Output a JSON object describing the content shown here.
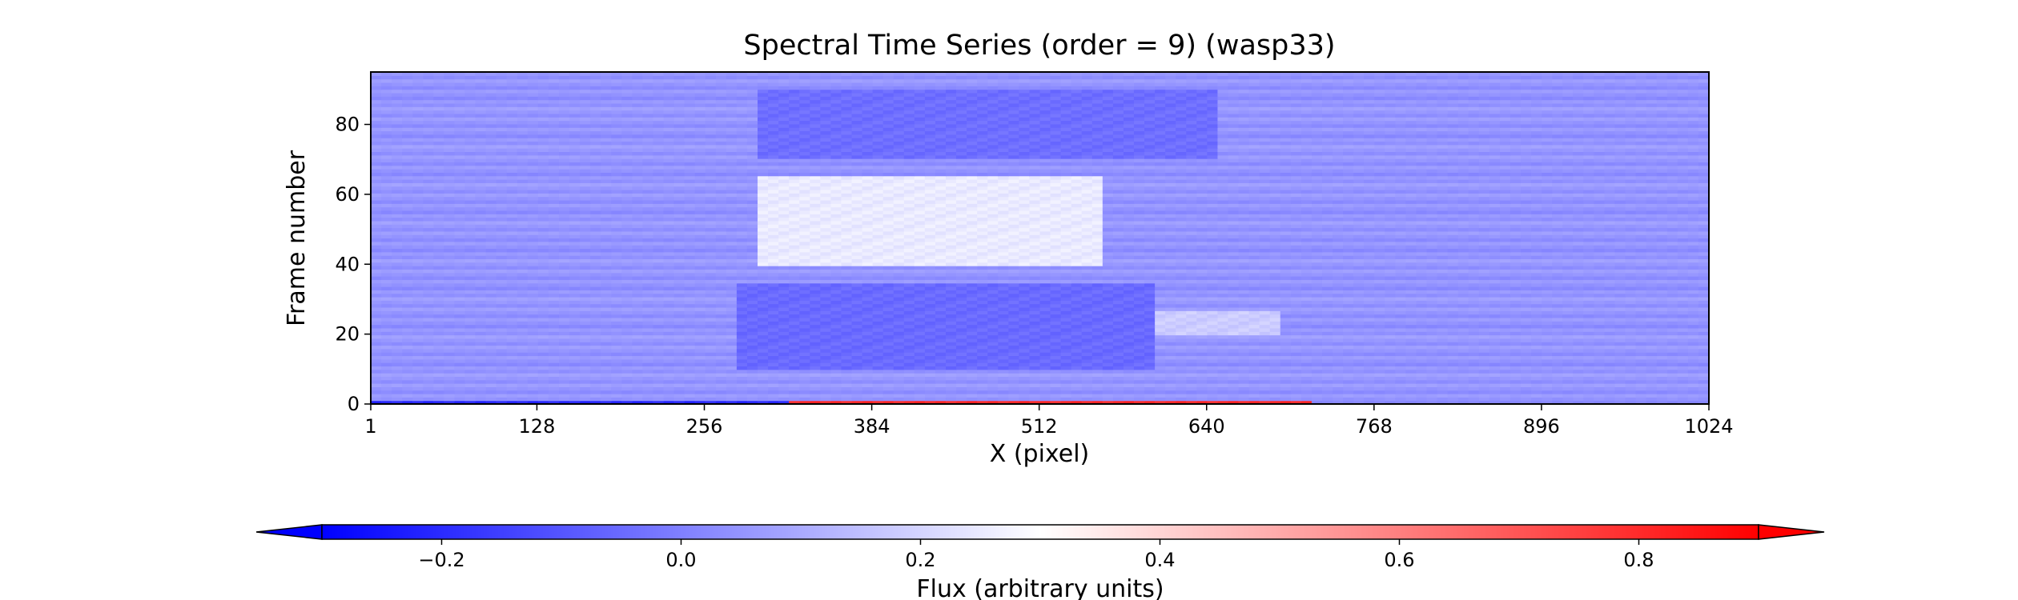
{
  "chart_data": {
    "type": "heatmap",
    "title": "Spectral Time Series (order = 9) (wasp33)",
    "xlabel": "X (pixel)",
    "ylabel": "Frame number",
    "xlim": [
      1,
      1024
    ],
    "ylim": [
      0,
      95
    ],
    "x_ticks": [
      1,
      128,
      256,
      384,
      512,
      640,
      768,
      896,
      1024
    ],
    "y_ticks": [
      0,
      20,
      40,
      60,
      80
    ],
    "colormap": "bwr",
    "colors": {
      "low": "#0000ff",
      "mid": "#ffffff",
      "high": "#ff0000"
    },
    "colorbar": {
      "label": "Flux (arbitrary units)",
      "vmin": -0.3,
      "vmax": 0.9,
      "ticks": [
        -0.2,
        0.0,
        0.2,
        0.4,
        0.6,
        0.8
      ],
      "tick_labels": [
        "−0.2",
        "0.0",
        "0.2",
        "0.4",
        "0.6",
        "0.8"
      ],
      "extend": "both",
      "orientation": "horizontal"
    },
    "features": [
      {
        "description": "background flux",
        "value": 0.05
      },
      {
        "description": "bright band",
        "x_range": [
          300,
          560
        ],
        "frame_range": [
          40,
          65
        ],
        "value": 0.25
      },
      {
        "description": "faint bright streak",
        "x_range": [
          540,
          700
        ],
        "frame_range": [
          20,
          27
        ],
        "value": 0.18
      },
      {
        "description": "dark band",
        "x_range": [
          280,
          600
        ],
        "frame_range": [
          10,
          35
        ],
        "value": -0.05
      },
      {
        "description": "dark band",
        "x_range": [
          300,
          650
        ],
        "frame_range": [
          70,
          90
        ],
        "value": -0.04
      },
      {
        "description": "high-flux first frame",
        "x_range": [
          320,
          720
        ],
        "frame_range": [
          0,
          1
        ],
        "value": 0.8
      },
      {
        "description": "low-flux first frame",
        "x_range": [
          1,
          320
        ],
        "frame_range": [
          0,
          1
        ],
        "value": -0.2
      }
    ]
  }
}
